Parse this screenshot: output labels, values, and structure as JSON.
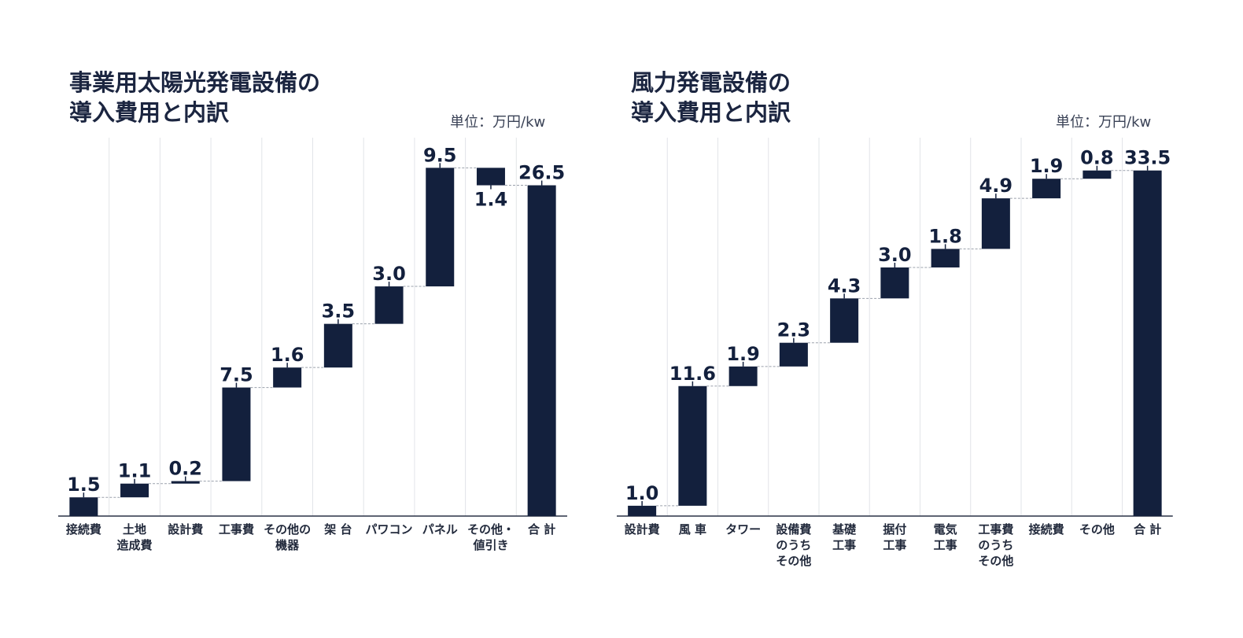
{
  "chart_data": [
    {
      "type": "bar",
      "subtype": "waterfall",
      "title": "事業用太陽光発電設備の\n導入費用と内訳",
      "unit_label": "単位：万円/kw",
      "categories": [
        "接続費",
        "土地\n造成費",
        "設計費",
        "工事費",
        "その他の\n機器",
        "架 台",
        "パワコン",
        "パネル",
        "その他・\n値引き",
        "合 計"
      ],
      "values": [
        1.5,
        1.1,
        0.2,
        7.5,
        1.6,
        3.5,
        3.0,
        9.5,
        -1.4,
        26.5
      ],
      "value_labels": [
        "1.5",
        "1.1",
        "0.2",
        "7.5",
        "1.6",
        "3.5",
        "3.0",
        "9.5",
        "1.4",
        "26.5"
      ],
      "total_index": 9,
      "ylim": [
        0,
        30
      ],
      "grid": "vertical",
      "bar_color": "#13203d"
    },
    {
      "type": "bar",
      "subtype": "waterfall",
      "title": "風力発電設備の\n導入費用と内訳",
      "unit_label": "単位：万円/kw",
      "categories": [
        "設計費",
        "風 車",
        "タワー",
        "設備費\nのうち\nその他",
        "基礎\n工事",
        "据付\n工事",
        "電気\n工事",
        "工事費\nのうち\nその他",
        "接続費",
        "その他",
        "合 計"
      ],
      "values": [
        1.0,
        11.6,
        1.9,
        2.3,
        4.3,
        3.0,
        1.8,
        4.9,
        1.9,
        0.8,
        33.5
      ],
      "value_labels": [
        "1.0",
        "11.6",
        "1.9",
        "2.3",
        "4.3",
        "3.0",
        "1.8",
        "4.9",
        "1.9",
        "0.8",
        "33.5"
      ],
      "total_index": 10,
      "ylim": [
        0,
        36.3
      ],
      "grid": "vertical",
      "bar_color": "#13203d"
    }
  ]
}
